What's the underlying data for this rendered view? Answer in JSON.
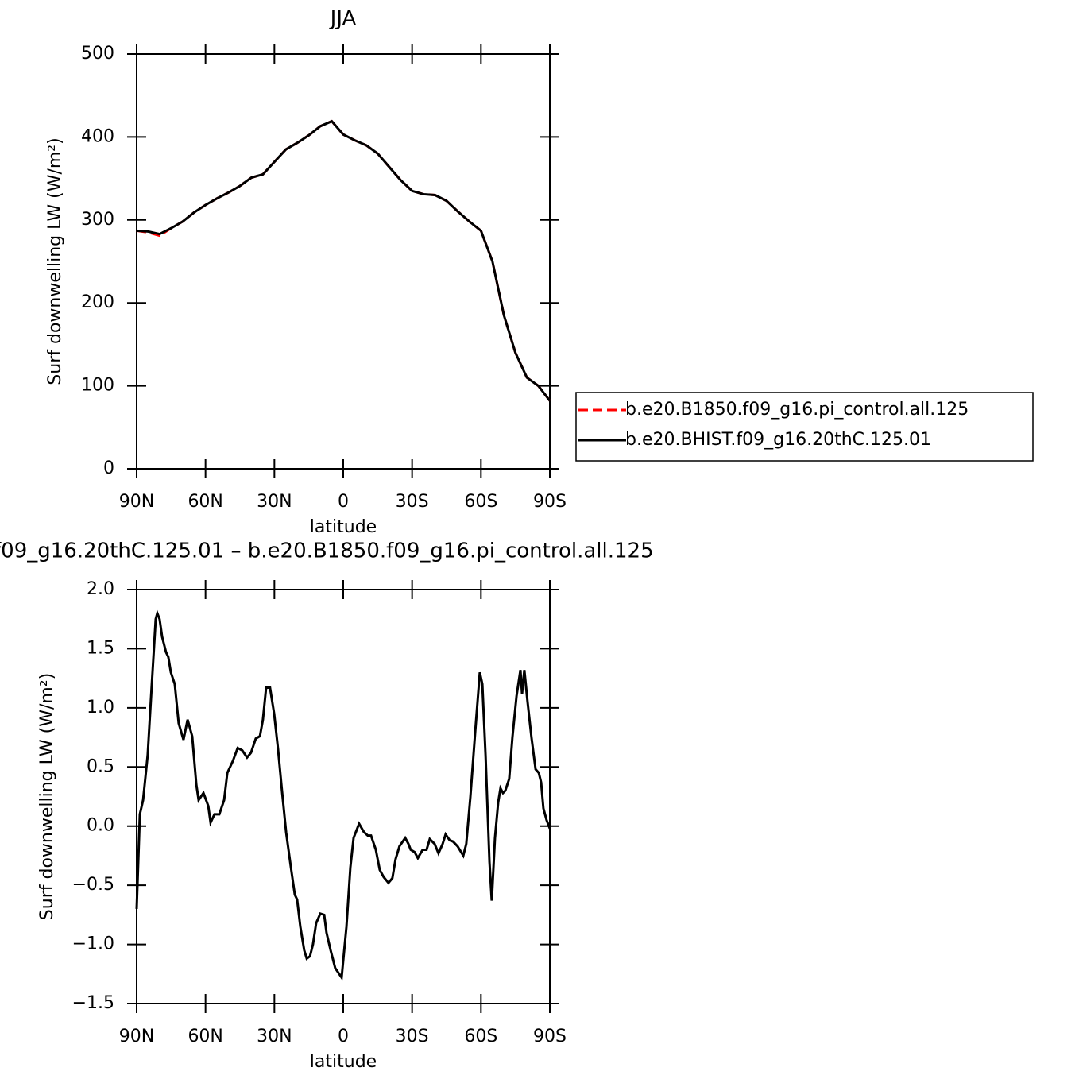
{
  "chart_data": [
    {
      "type": "line",
      "title": "JJA",
      "xlabel": "latitude",
      "ylabel": "Surf downwelling LW (W/m²)",
      "xlim": [
        90,
        -90
      ],
      "xticks": [
        {
          "value": 90,
          "label": "90N"
        },
        {
          "value": 60,
          "label": "60N"
        },
        {
          "value": 30,
          "label": "30N"
        },
        0,
        {
          "value": -30,
          "label": "30S"
        },
        {
          "value": -60,
          "label": "60S"
        },
        {
          "value": -90,
          "label": "90S"
        }
      ],
      "ylim": [
        0,
        500
      ],
      "yticks": [
        0,
        100,
        200,
        300,
        400,
        500
      ],
      "legend": "right",
      "x": [
        90,
        85,
        80,
        75,
        70,
        65,
        60,
        55,
        50,
        45,
        40,
        35,
        30,
        25,
        20,
        15,
        10,
        5,
        0,
        -5,
        -10,
        -15,
        -20,
        -25,
        -30,
        -35,
        -40,
        -45,
        -50,
        -55,
        -60,
        -65,
        -70,
        -75,
        -80,
        -85,
        -90
      ],
      "series": [
        {
          "name": "b.e20.B1850.f09_g16.pi_control.all.125",
          "color": "#ff0000",
          "dash": "dashed",
          "values": [
            287,
            285,
            281,
            290,
            298,
            309,
            318,
            326,
            333,
            341,
            351,
            355,
            370,
            385,
            393,
            402,
            413,
            419,
            403,
            396,
            390,
            380,
            364,
            348,
            335,
            331,
            330,
            323,
            310,
            298,
            287,
            250,
            185,
            140,
            110,
            100,
            82
          ]
        },
        {
          "name": "b.e20.BHIST.f09_g16.20thC.125.01",
          "color": "#000000",
          "dash": "solid",
          "values": [
            287,
            286,
            283,
            290,
            298,
            309,
            318,
            326,
            333,
            341,
            351,
            355,
            370,
            385,
            393,
            402,
            413,
            419,
            403,
            396,
            390,
            380,
            364,
            348,
            335,
            331,
            330,
            323,
            310,
            298,
            287,
            250,
            185,
            140,
            110,
            100,
            82
          ]
        }
      ]
    },
    {
      "type": "line",
      "title": "f09_g16.20thC.125.01 – b.e20.B1850.f09_g16.pi_control.all.125",
      "xlabel": "latitude",
      "ylabel": "Surf downwelling LW (W/m²)",
      "xlim": [
        90,
        -90
      ],
      "xticks": [
        {
          "value": 90,
          "label": "90N"
        },
        {
          "value": 60,
          "label": "60N"
        },
        {
          "value": 30,
          "label": "30N"
        },
        0,
        {
          "value": -30,
          "label": "30S"
        },
        {
          "value": -60,
          "label": "60S"
        },
        {
          "value": -90,
          "label": "90S"
        }
      ],
      "ylim": [
        -1.5,
        2.0
      ],
      "yticks": [
        {
          "value": -1.5,
          "label": "−1.5"
        },
        {
          "value": -1.0,
          "label": "−1.0"
        },
        {
          "value": -0.5,
          "label": "−0.5"
        },
        {
          "value": 0,
          "label": "0.0"
        },
        0.5,
        {
          "value": 1.0,
          "label": "1.0"
        },
        1.5,
        {
          "value": 2.0,
          "label": "2.0"
        }
      ],
      "x": [
        90,
        88.6,
        87.2,
        85.2,
        83.4,
        81.7,
        81.0,
        80.0,
        78.9,
        77.2,
        76.2,
        75.1,
        73.4,
        71.7,
        69.6,
        67.8,
        65.8,
        64.0,
        63.0,
        60.9,
        58.8,
        57.8,
        56.1,
        54.0,
        51.9,
        50.5,
        48.1,
        46.0,
        44.0,
        41.9,
        40.2,
        38.1,
        36.3,
        35.0,
        33.6,
        31.9,
        30.1,
        28.4,
        26.7,
        24.9,
        22.8,
        21.1,
        20.1,
        18.7,
        17.0,
        15.9,
        14.5,
        13.2,
        11.8,
        10.0,
        8.3,
        7.3,
        5.5,
        3.5,
        0.7,
        -1.4,
        -3.1,
        -4.5,
        -6.9,
        -9.0,
        -10.7,
        -12.1,
        -14.2,
        -15.9,
        -17.6,
        -19.7,
        -21.4,
        -22.8,
        -24.5,
        -27.0,
        -28.4,
        -29.4,
        -31.1,
        -32.5,
        -34.6,
        -36.3,
        -37.7,
        -39.8,
        -41.5,
        -43.3,
        -44.6,
        -46.4,
        -47.8,
        -49.8,
        -52.3,
        -53.6,
        -55.4,
        -57.5,
        -59.5,
        -60.6,
        -62.0,
        -63.7,
        -64.7,
        -66.1,
        -67.5,
        -68.5,
        -69.6,
        -70.6,
        -72.3,
        -73.7,
        -75.5,
        -77.2,
        -77.9,
        -78.9,
        -80.3,
        -82.0,
        -83.8,
        -85.2,
        -86.2,
        -87.2,
        -88.6,
        -90
      ],
      "series": [
        {
          "color": "#000000",
          "dash": "solid",
          "values": [
            -0.7,
            0.1,
            0.22,
            0.6,
            1.2,
            1.75,
            1.8,
            1.75,
            1.6,
            1.47,
            1.43,
            1.3,
            1.2,
            0.87,
            0.73,
            0.9,
            0.76,
            0.35,
            0.22,
            0.28,
            0.17,
            0.03,
            0.1,
            0.1,
            0.22,
            0.45,
            0.55,
            0.66,
            0.64,
            0.58,
            0.62,
            0.74,
            0.76,
            0.9,
            1.17,
            1.17,
            0.95,
            0.65,
            0.3,
            -0.05,
            -0.35,
            -0.58,
            -0.62,
            -0.85,
            -1.05,
            -1.12,
            -1.1,
            -1.0,
            -0.82,
            -0.74,
            -0.75,
            -0.9,
            -1.05,
            -1.2,
            -1.28,
            -0.85,
            -0.35,
            -0.1,
            0.02,
            -0.05,
            -0.08,
            -0.08,
            -0.2,
            -0.37,
            -0.43,
            -0.48,
            -0.44,
            -0.28,
            -0.17,
            -0.1,
            -0.15,
            -0.2,
            -0.22,
            -0.27,
            -0.2,
            -0.2,
            -0.11,
            -0.15,
            -0.23,
            -0.15,
            -0.07,
            -0.12,
            -0.13,
            -0.17,
            -0.25,
            -0.15,
            0.25,
            0.8,
            1.3,
            1.2,
            0.6,
            -0.3,
            -0.63,
            -0.1,
            0.2,
            0.32,
            0.28,
            0.3,
            0.4,
            0.75,
            1.1,
            1.32,
            1.12,
            1.32,
            1.05,
            0.75,
            0.48,
            0.45,
            0.37,
            0.15,
            0.05,
            -0.02
          ]
        }
      ]
    }
  ]
}
